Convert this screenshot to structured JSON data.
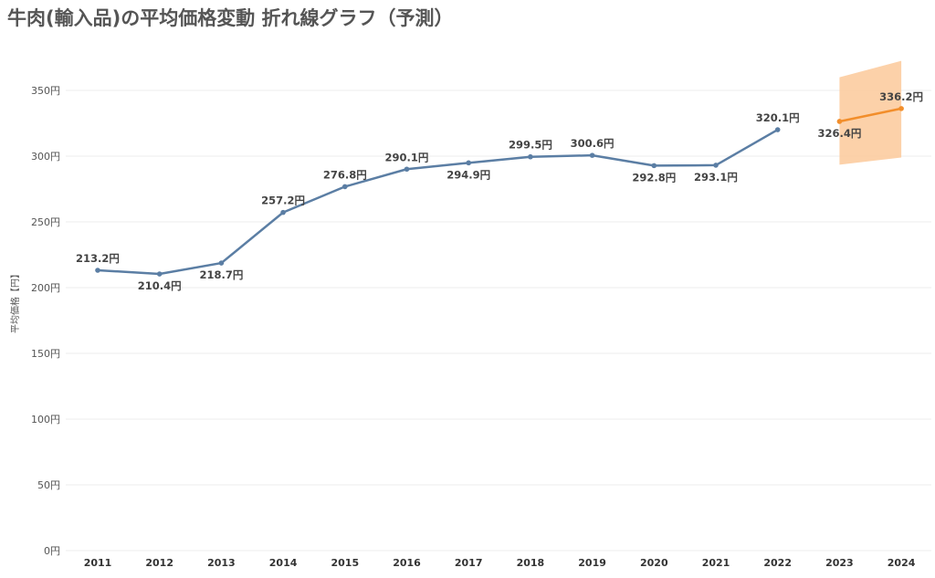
{
  "title": "牛肉(輸入品)の平均価格変動 折れ線グラフ（予測）",
  "chart_data": {
    "type": "line",
    "title": "牛肉(輸入品)の平均価格変動 折れ線グラフ（予測）",
    "ylabel": "平均価格【円】",
    "xlabel": "",
    "ylim": [
      0,
      380
    ],
    "y_ticks": [
      {
        "value": 0,
        "label": "0円"
      },
      {
        "value": 50,
        "label": "50円"
      },
      {
        "value": 100,
        "label": "100円"
      },
      {
        "value": 150,
        "label": "150円"
      },
      {
        "value": 200,
        "label": "200円"
      },
      {
        "value": 250,
        "label": "250円"
      },
      {
        "value": 300,
        "label": "300円"
      },
      {
        "value": 350,
        "label": "350円"
      }
    ],
    "categories": [
      "2011",
      "2012",
      "2013",
      "2014",
      "2015",
      "2016",
      "2017",
      "2018",
      "2019",
      "2020",
      "2021",
      "2022",
      "2023",
      "2024"
    ],
    "grid": true,
    "legend": "none",
    "series": [
      {
        "color": "#5b7ea4",
        "points": [
          {
            "x": "2011",
            "y": 213.2,
            "label": "213.2円",
            "pos": "above"
          },
          {
            "x": "2012",
            "y": 210.4,
            "label": "210.4円",
            "pos": "below"
          },
          {
            "x": "2013",
            "y": 218.7,
            "label": "218.7円",
            "pos": "below"
          },
          {
            "x": "2014",
            "y": 257.2,
            "label": "257.2円",
            "pos": "above"
          },
          {
            "x": "2015",
            "y": 276.8,
            "label": "276.8円",
            "pos": "above"
          },
          {
            "x": "2016",
            "y": 290.1,
            "label": "290.1円",
            "pos": "above"
          },
          {
            "x": "2017",
            "y": 294.9,
            "label": "294.9円",
            "pos": "below"
          },
          {
            "x": "2018",
            "y": 299.5,
            "label": "299.5円",
            "pos": "above"
          },
          {
            "x": "2019",
            "y": 300.6,
            "label": "300.6円",
            "pos": "above"
          },
          {
            "x": "2020",
            "y": 292.8,
            "label": "292.8円",
            "pos": "below"
          },
          {
            "x": "2021",
            "y": 293.1,
            "label": "293.1円",
            "pos": "below"
          },
          {
            "x": "2022",
            "y": 320.1,
            "label": "320.1円",
            "pos": "above"
          }
        ]
      },
      {
        "color": "#f28e2b",
        "points": [
          {
            "x": "2023",
            "y": 326.4,
            "label": "326.4円",
            "pos": "below"
          },
          {
            "x": "2024",
            "y": 336.2,
            "label": "336.2円",
            "pos": "above"
          }
        ]
      }
    ],
    "forecast_band": {
      "color": "#fbc99a",
      "points": [
        {
          "x": "2023",
          "lower": 293.5,
          "upper": 360
        },
        {
          "x": "2024",
          "lower": 299,
          "upper": 372.5
        }
      ]
    }
  }
}
